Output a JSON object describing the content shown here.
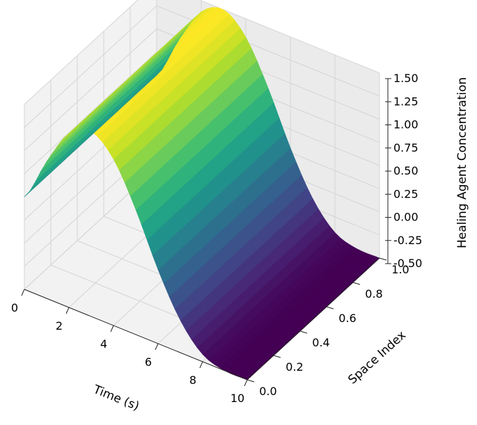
{
  "chart_data": {
    "type": "surface3d",
    "title": "",
    "xlabel": "Time (s)",
    "ylabel": "Space Index",
    "zlabel": "Healing Agent Concentration",
    "xlim": [
      0,
      10
    ],
    "ylim": [
      0,
      1
    ],
    "zlim": [
      -0.5,
      1.5
    ],
    "x_ticks": [
      "0",
      "2",
      "4",
      "6",
      "8",
      "10"
    ],
    "y_ticks": [
      "0.0",
      "0.2",
      "0.4",
      "0.6",
      "0.8",
      "1.0"
    ],
    "z_ticks": [
      "-0.50",
      "-0.25",
      "0.00",
      "0.25",
      "0.50",
      "0.75",
      "1.00",
      "1.25",
      "1.50"
    ],
    "colormap": "viridis",
    "grid": true,
    "surface": {
      "description_of_values": "concentration as function of time; constant along space index",
      "time": [
        0,
        1,
        2,
        3,
        4,
        5,
        6,
        7,
        8,
        9,
        10
      ],
      "concentration": [
        0.5,
        0.98,
        1.38,
        1.5,
        1.3,
        0.85,
        0.3,
        -0.15,
        -0.42,
        -0.5,
        -0.5
      ]
    }
  }
}
